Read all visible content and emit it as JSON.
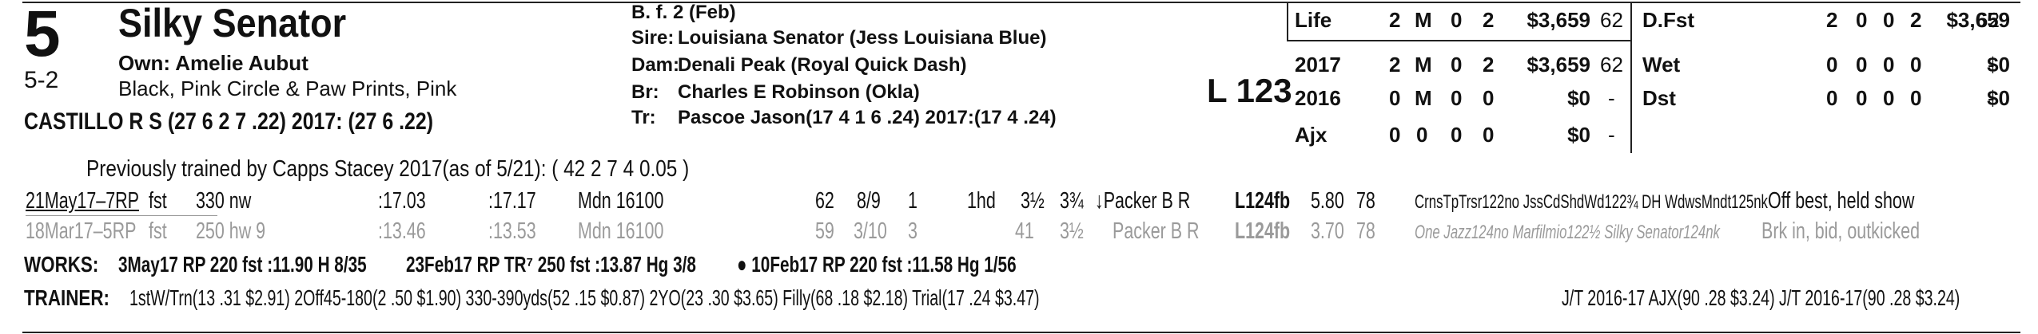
{
  "header": {
    "program_number": "5",
    "odds": "5-2",
    "horse_name": "Silky Senator",
    "owner": "Own: Amelie Aubut",
    "silks": "Black, Pink Circle & Paw Prints, Pink",
    "jockey": "CASTILLO R S (27 6 2 7 .22) 2017: (27 6 .22)"
  },
  "pedigree": {
    "description": "B. f. 2 (Feb)",
    "sire_label": "Sire:",
    "sire": "Louisiana Senator (Jess Louisiana Blue)",
    "dam_label": "Dam:",
    "dam": "Denali Peak (Royal Quick Dash)",
    "breeder_label": "Br:",
    "breeder": "Charles E Robinson (Okla)",
    "trainer_label": "Tr:",
    "trainer": "Pascoe Jason(17 4 1 6 .24)  2017:(17 4 .24)"
  },
  "weight": "L 123",
  "record_left": [
    {
      "label": "Life",
      "starts": "2",
      "w": "M",
      "p": "0",
      "s": "2",
      "earn": "$3,659",
      "speed": "62"
    },
    {
      "label": "2017",
      "starts": "2",
      "w": "M",
      "p": "0",
      "s": "2",
      "earn": "$3,659",
      "speed": "62"
    },
    {
      "label": "2016",
      "starts": "0",
      "w": "M",
      "p": "0",
      "s": "0",
      "earn": "$0",
      "speed": "-"
    },
    {
      "label": "Ajx",
      "starts": "0",
      "w": "0",
      "p": "0",
      "s": "0",
      "earn": "$0",
      "speed": "-"
    }
  ],
  "record_right": [
    {
      "label": "D.Fst",
      "starts": "2",
      "w": "0",
      "p": "0",
      "s": "2",
      "earn": "$3,659",
      "speed": "62"
    },
    {
      "label": "Wet",
      "starts": "0",
      "w": "0",
      "p": "0",
      "s": "0",
      "earn": "$0",
      "speed": "-"
    },
    {
      "label": "Dst",
      "starts": "0",
      "w": "0",
      "p": "0",
      "s": "0",
      "earn": "$0",
      "speed": "-"
    }
  ],
  "previously_trained": "Previously trained by Capps Stacey 2017(as of 5/21): ( 42 2 7 4 0.05 )",
  "races": [
    {
      "date": "21May17–7RP",
      "track": "fst",
      "dist": "330 nw",
      "frac1": ":17.03",
      "frac2": ":17.17",
      "class": "Mdn 16100",
      "speed": "62",
      "pp": "8/9",
      "st": "1",
      "fin1": "1hd",
      "fin2": "3½",
      "fin3": "3¾",
      "jockey": "↓Packer B R",
      "med": "L124fb",
      "odds": "5.80",
      "fig": "78",
      "comment_line": "CrnsTpTrsr122no JssCdShdWd122¾ DH WdwsMndt125nk",
      "trip": "Off best, held show"
    },
    {
      "date": "18Mar17–5RP",
      "track": "fst",
      "dist": "250 hw 9",
      "frac1": ":13.46",
      "frac2": ":13.53",
      "class": "Mdn 16100",
      "speed": "59",
      "pp": "3/10",
      "st": "3",
      "fin1": "",
      "fin2": "41",
      "fin3": "3½",
      "jockey": "Packer B R",
      "med": "L124fb",
      "odds": "3.70",
      "fig": "78",
      "comment_line": "One Jazz124no Marfilmio122½ Silky Senator124nk",
      "trip": "Brk in, bid, outkicked"
    }
  ],
  "works": {
    "label": "WORKS:",
    "entries": [
      "3May17 RP 220 fst :11.90 H 8/35",
      "23Feb17 RP TR⁷ 250 fst :13.87 Hg 3/8",
      "● 10Feb17 RP 220 fst :11.58 Hg 1/56"
    ]
  },
  "trainer_stats": {
    "label": "TRAINER:",
    "text": "1stW/Trn(13 .31 $2.91) 2Off45-180(2 .50 $1.90) 330-390yds(52 .15 $0.87) 2YO(23 .30 $3.65) Filly(68 .18 $2.18) Trial(17 .24 $3.47)",
    "jt": "J/T 2016-17 AJX(90 .28 $3.24)  J/T 2016-17(90 .28 $3.24)"
  }
}
